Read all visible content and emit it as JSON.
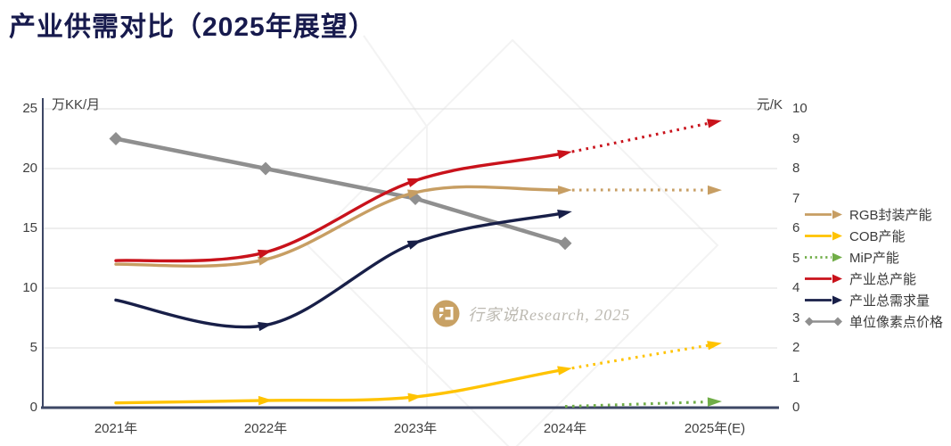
{
  "title": "产业供需对比（2025年展望）",
  "watermark": {
    "text": "行家说Research, 2025",
    "logo_color": "#C8A164"
  },
  "chart_data": {
    "type": "line",
    "title": "产业供需对比（2025年展望）",
    "x_categories": [
      "2021年",
      "2022年",
      "2023年",
      "2024年",
      "2025年(E)"
    ],
    "left_axis": {
      "unit": "万KK/月",
      "range": [
        0,
        25
      ],
      "ticks": [
        25,
        20,
        15,
        10,
        5,
        0
      ]
    },
    "right_axis": {
      "unit": "元/K",
      "range": [
        0,
        10
      ],
      "ticks": [
        10,
        9,
        8,
        7,
        6,
        5,
        4,
        3,
        2,
        1,
        0
      ]
    },
    "grid": "horizontal",
    "legend_position": "right",
    "forecast_note": "dotted segments after 2024 are forecast",
    "series": [
      {
        "id": "rgb_capacity",
        "name": "RGB封装产能",
        "color": "#C79E63",
        "axis": "left",
        "marker": "arrow",
        "dotted_from": 3,
        "values": [
          12.0,
          12.4,
          18.0,
          18.2,
          18.2
        ]
      },
      {
        "id": "cob_capacity",
        "name": "COB产能",
        "color": "#FFC300",
        "axis": "left",
        "marker": "arrow",
        "dotted_from": 3,
        "values": [
          0.4,
          0.6,
          0.9,
          3.2,
          5.3
        ]
      },
      {
        "id": "mip_capacity",
        "name": "MiP产能",
        "color": "#70AD47",
        "axis": "left",
        "marker": "arrow",
        "dotted_from": 3,
        "values": [
          null,
          null,
          null,
          0.1,
          0.5
        ]
      },
      {
        "id": "total_capacity",
        "name": "产业总产能",
        "color": "#C9121B",
        "axis": "left",
        "marker": "arrow",
        "dotted_from": 3,
        "values": [
          12.3,
          13.0,
          19.0,
          21.3,
          23.9
        ]
      },
      {
        "id": "total_demand",
        "name": "产业总需求量",
        "color": "#181F48",
        "axis": "left",
        "marker": "arrow",
        "values": [
          9.0,
          6.9,
          13.8,
          16.3,
          null
        ]
      },
      {
        "id": "unit_pixel_price",
        "name": "单位像素点价格",
        "color": "#8F8F8F",
        "axis": "right",
        "marker": "diamond",
        "values": [
          9.0,
          8.0,
          7.0,
          5.5,
          null
        ]
      }
    ]
  }
}
